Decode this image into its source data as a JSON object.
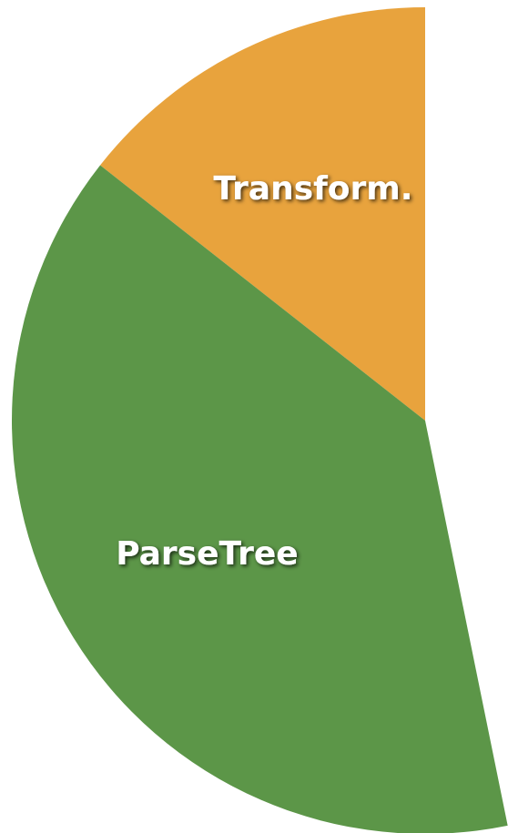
{
  "chart_data": {
    "type": "pie",
    "categories": [
      "Transform.",
      "ParseTree"
    ],
    "values": [
      14.4,
      38.8
    ],
    "colors": [
      "#e8a33d",
      "#5c9648"
    ]
  }
}
